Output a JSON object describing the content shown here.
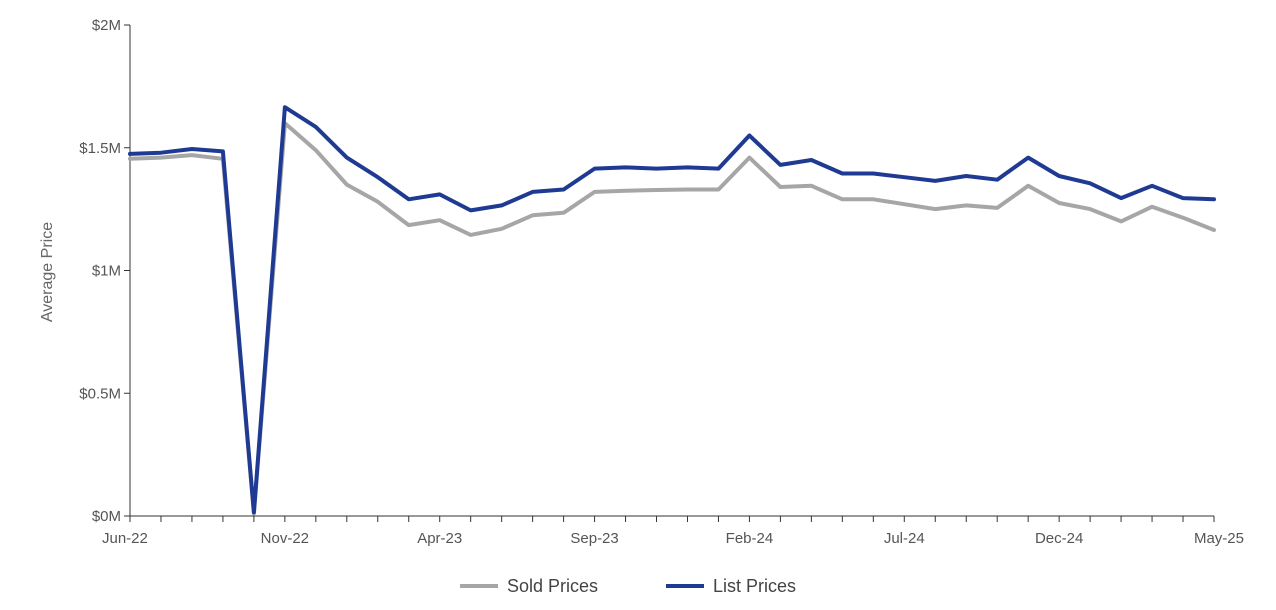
{
  "chart_data": {
    "type": "line",
    "ylabel": "Average Price",
    "xlabel": "",
    "ylim": [
      0,
      2000000
    ],
    "y_ticks": [
      {
        "value": 0,
        "label": "$0M"
      },
      {
        "value": 500000,
        "label": "$0.5M"
      },
      {
        "value": 1000000,
        "label": "$1M"
      },
      {
        "value": 1500000,
        "label": "$1.5M"
      },
      {
        "value": 2000000,
        "label": "$2M"
      }
    ],
    "categories": [
      "Jun-22",
      "Jul-22",
      "Aug-22",
      "Sep-22",
      "Oct-22",
      "Nov-22",
      "Dec-22",
      "Jan-23",
      "Feb-23",
      "Mar-23",
      "Apr-23",
      "May-23",
      "Jun-23",
      "Jul-23",
      "Aug-23",
      "Sep-23",
      "Oct-23",
      "Nov-23",
      "Dec-23",
      "Jan-24",
      "Feb-24",
      "Mar-24",
      "Apr-24",
      "May-24",
      "Jun-24",
      "Jul-24",
      "Aug-24",
      "Sep-24",
      "Oct-24",
      "Nov-24",
      "Dec-24",
      "Jan-25",
      "Feb-25",
      "Mar-25",
      "Apr-25",
      "May-25"
    ],
    "x_tick_labels": [
      {
        "index": 0,
        "label": "Jun-22"
      },
      {
        "index": 5,
        "label": "Nov-22"
      },
      {
        "index": 10,
        "label": "Apr-23"
      },
      {
        "index": 15,
        "label": "Sep-23"
      },
      {
        "index": 20,
        "label": "Feb-24"
      },
      {
        "index": 25,
        "label": "Jul-24"
      },
      {
        "index": 30,
        "label": "Dec-24"
      },
      {
        "index": 35,
        "label": "May-25"
      }
    ],
    "grid": false,
    "legend": "bottom",
    "series": [
      {
        "name": "Sold Prices",
        "color": "#a6a6a6",
        "values": [
          1455000,
          1460000,
          1470000,
          1455000,
          10000,
          1600000,
          1490000,
          1350000,
          1280000,
          1185000,
          1205000,
          1145000,
          1170000,
          1225000,
          1235000,
          1320000,
          1325000,
          1328000,
          1330000,
          1330000,
          1460000,
          1340000,
          1345000,
          1290000,
          1290000,
          1270000,
          1250000,
          1265000,
          1255000,
          1345000,
          1275000,
          1250000,
          1200000,
          1260000,
          1215000,
          1165000
        ]
      },
      {
        "name": "List Prices",
        "color": "#1f3a93",
        "values": [
          1475000,
          1480000,
          1495000,
          1485000,
          15000,
          1665000,
          1585000,
          1460000,
          1380000,
          1290000,
          1310000,
          1245000,
          1265000,
          1320000,
          1330000,
          1415000,
          1420000,
          1415000,
          1420000,
          1415000,
          1550000,
          1430000,
          1450000,
          1395000,
          1395000,
          1380000,
          1365000,
          1385000,
          1370000,
          1460000,
          1385000,
          1355000,
          1295000,
          1345000,
          1295000,
          1290000
        ]
      }
    ]
  }
}
